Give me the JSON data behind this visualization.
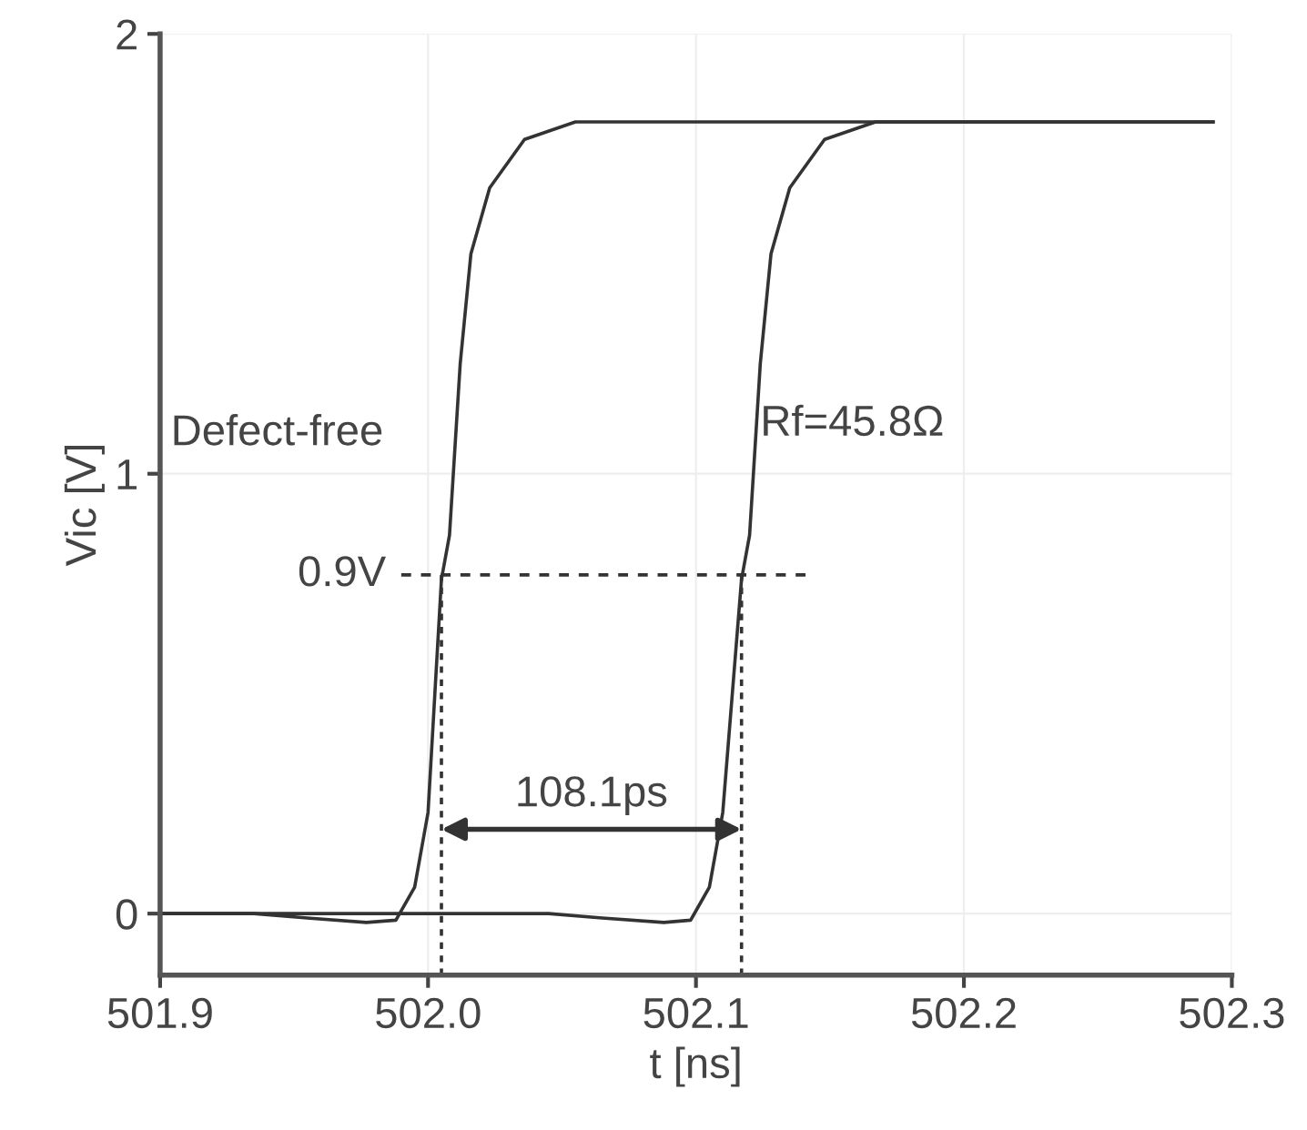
{
  "chart_data": {
    "type": "line",
    "xlabel": "t [ns]",
    "ylabel": "Vic [V]",
    "xlim": [
      501.9,
      502.3
    ],
    "ylim": [
      -0.14,
      2
    ],
    "xticks": [
      501.9,
      {
        "value": 502.0,
        "label": "502.0"
      },
      502.1,
      502.2,
      502.3
    ],
    "yticks": [
      0,
      1,
      2
    ],
    "grid": true,
    "marker": "none",
    "series": [
      {
        "color": "#333333",
        "line_style": "solid",
        "x": [
          501.9,
          501.935,
          501.955,
          501.977,
          501.988,
          501.995,
          502.0,
          502.005,
          502.008,
          502.012,
          502.016,
          502.023,
          502.036,
          502.055,
          502.293
        ],
        "values": [
          0,
          0,
          -0.01,
          -0.02,
          -0.015,
          0.06,
          0.23,
          0.76,
          0.86,
          1.25,
          1.5,
          1.65,
          1.76,
          1.8,
          1.8
        ]
      },
      {
        "color": "#333333",
        "line_style": "solid",
        "x": [
          501.9,
          502.045,
          502.065,
          502.088,
          502.098,
          502.105,
          502.11,
          502.117,
          502.12,
          502.124,
          502.128,
          502.135,
          502.148,
          502.167,
          502.293
        ],
        "values": [
          0,
          0,
          -0.01,
          -0.02,
          -0.015,
          0.06,
          0.23,
          0.76,
          0.86,
          1.25,
          1.5,
          1.65,
          1.76,
          1.8,
          1.8
        ]
      },
      {
        "color": "#333333",
        "line_style": "dashed",
        "x": [
          501.99,
          502.141
        ],
        "values": [
          0.77,
          0.77
        ]
      },
      {
        "color": "#333333",
        "line_style": "dotted",
        "x": [
          502.005,
          502.005
        ],
        "values": [
          -0.14,
          0.77
        ]
      },
      {
        "color": "#333333",
        "line_style": "dotted",
        "x": [
          502.117,
          502.117
        ],
        "values": [
          -0.14,
          0.77
        ]
      }
    ],
    "annotations": [
      "Defect-free",
      "Rf=45.8Ω",
      "0.9V",
      "108.1ps"
    ]
  }
}
